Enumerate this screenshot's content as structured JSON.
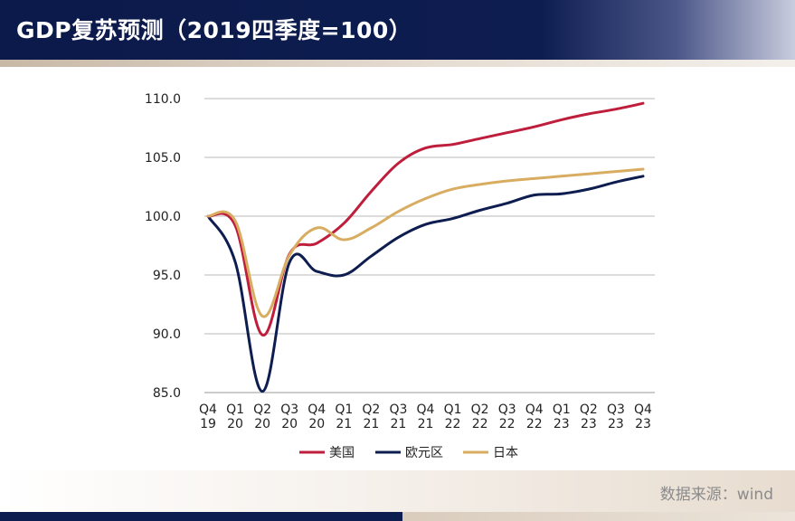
{
  "header": {
    "title": "GDP复苏预测（2019四季度=100）"
  },
  "source": "数据来源：wind",
  "chart_data": {
    "type": "line",
    "title": "GDP复苏预测（2019四季度=100）",
    "xlabel": "",
    "ylabel": "",
    "ylim": [
      85,
      110
    ],
    "yticks": [
      "85.0",
      "90.0",
      "95.0",
      "100.0",
      "105.0",
      "110.0"
    ],
    "grid": true,
    "legend_position": "bottom",
    "categories": [
      [
        "Q4",
        "19"
      ],
      [
        "Q1",
        "20"
      ],
      [
        "Q2",
        "20"
      ],
      [
        "Q3",
        "20"
      ],
      [
        "Q4",
        "20"
      ],
      [
        "Q1",
        "21"
      ],
      [
        "Q2",
        "21"
      ],
      [
        "Q3",
        "21"
      ],
      [
        "Q4",
        "21"
      ],
      [
        "Q1",
        "22"
      ],
      [
        "Q2",
        "22"
      ],
      [
        "Q3",
        "22"
      ],
      [
        "Q4",
        "22"
      ],
      [
        "Q1",
        "23"
      ],
      [
        "Q2",
        "23"
      ],
      [
        "Q3",
        "23"
      ],
      [
        "Q4",
        "23"
      ]
    ],
    "series": [
      {
        "name": "美国",
        "color": "#be1e3c",
        "values": [
          100.0,
          99.2,
          89.9,
          96.8,
          97.7,
          99.4,
          102.1,
          104.5,
          105.8,
          106.1,
          106.6,
          107.1,
          107.6,
          108.2,
          108.7,
          109.1,
          109.6
        ]
      },
      {
        "name": "欧元区",
        "color": "#0e1d50",
        "values": [
          100.0,
          96.1,
          85.1,
          96.1,
          95.3,
          95.0,
          96.6,
          98.2,
          99.3,
          99.8,
          100.5,
          101.1,
          101.8,
          101.9,
          102.3,
          102.9,
          103.4
        ]
      },
      {
        "name": "日本",
        "color": "#d8ad62",
        "values": [
          100.0,
          99.6,
          91.5,
          96.7,
          99.0,
          98.0,
          99.0,
          100.4,
          101.5,
          102.3,
          102.7,
          103.0,
          103.2,
          103.4,
          103.6,
          103.8,
          104.0
        ]
      }
    ]
  }
}
